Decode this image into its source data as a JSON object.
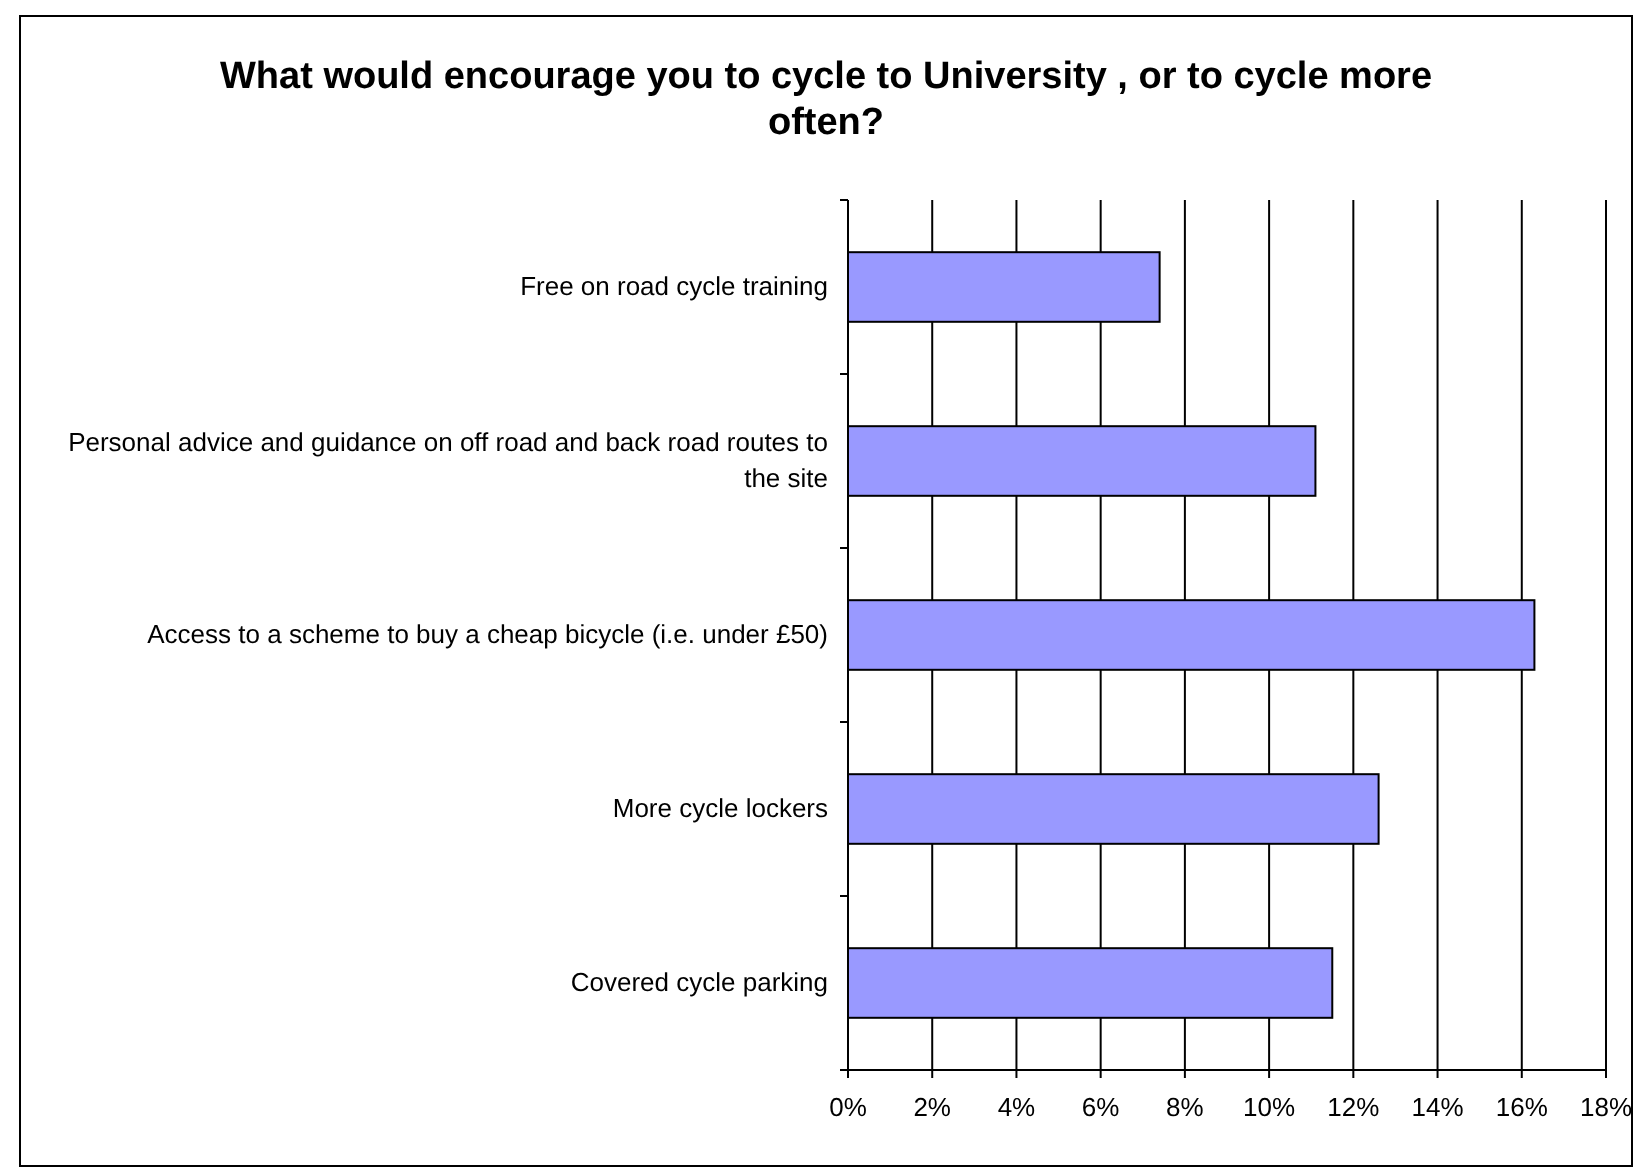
{
  "chart_data": {
    "type": "bar",
    "orientation": "horizontal",
    "title": "What would encourage you to cycle to University , or to cycle more often?",
    "categories": [
      "Free on road cycle training",
      "Personal advice and guidance on off road and back road routes to the site",
      "Access to a scheme to buy a cheap bicycle (i.e. under £50)",
      "More cycle lockers",
      "Covered cycle parking"
    ],
    "values": [
      7.4,
      11.1,
      16.3,
      12.6,
      11.5
    ],
    "color": "#9999ff",
    "xlim": [
      0,
      18
    ],
    "xticks": [
      {
        "value": 0,
        "label": "0%"
      },
      {
        "value": 2,
        "label": "2%"
      },
      {
        "value": 4,
        "label": "4%"
      },
      {
        "value": 6,
        "label": "6%"
      },
      {
        "value": 8,
        "label": "8%"
      },
      {
        "value": 10,
        "label": "10%"
      },
      {
        "value": 12,
        "label": "12%"
      },
      {
        "value": 14,
        "label": "14%"
      },
      {
        "value": 16,
        "label": "16%"
      },
      {
        "value": 18,
        "label": "18%"
      }
    ],
    "grid": "x"
  }
}
